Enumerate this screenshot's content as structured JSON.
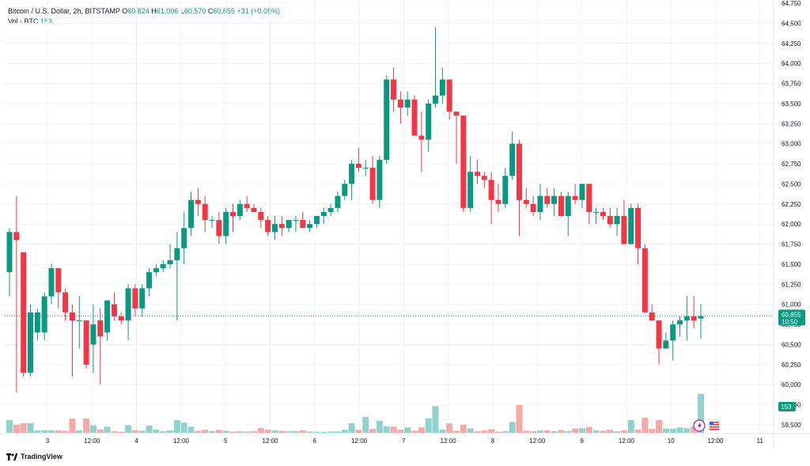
{
  "header": {
    "symbol": "Bitcoin / U.S. Dollar, 2h, BITSTAMP",
    "open_label": "O",
    "open": "60,824",
    "high_label": "H",
    "high": "61,006",
    "low_label": "L",
    "low": "60,570",
    "close_label": "C",
    "close": "60,855",
    "change": "+31 (+0.05%)",
    "volume_label": "Vol · BTC",
    "volume": "153"
  },
  "price_tag": {
    "price": "60,855",
    "countdown": "10:50"
  },
  "volume_tag": "153",
  "brand": "TradingView",
  "colors": {
    "up": "#089981",
    "down": "#f23645",
    "up_vol": "#92d2cc",
    "down_vol": "#f7a9a7",
    "grid": "#f0f3fa",
    "last_line": "#089981"
  },
  "icons": [
    "lightning-icon",
    "us-flag-icon"
  ],
  "chart_data": {
    "type": "candlestick",
    "title": "Bitcoin / U.S. Dollar, 2h, BITSTAMP",
    "ylim": [
      59500,
      64750
    ],
    "yticks": [
      "59,500",
      "59,750",
      "60,000",
      "60,250",
      "60,500",
      "60,750",
      "61,000",
      "61,250",
      "61,500",
      "61,750",
      "62,000",
      "62,250",
      "62,500",
      "62,750",
      "63,000",
      "63,250",
      "63,500",
      "63,750",
      "64,000",
      "64,250",
      "64,500",
      "64,750"
    ],
    "xticks": [
      "3",
      "12:00",
      "4",
      "12:00",
      "5",
      "12:00",
      "6",
      "12:00",
      "7",
      "12:00",
      "8",
      "12:00",
      "9",
      "12:00",
      "10",
      "12:00",
      "11"
    ],
    "volume_max": 200,
    "grid": true,
    "candles": [
      {
        "o": 61400,
        "h": 61950,
        "l": 61100,
        "c": 61900,
        "v": 50
      },
      {
        "o": 61900,
        "h": 62350,
        "l": 59900,
        "c": 61800,
        "v": 32
      },
      {
        "o": 61650,
        "h": 61650,
        "l": 60100,
        "c": 60150,
        "v": 38
      },
      {
        "o": 60150,
        "h": 61000,
        "l": 60100,
        "c": 60900,
        "v": 38
      },
      {
        "o": 60650,
        "h": 60950,
        "l": 60550,
        "c": 60900,
        "v": 9
      },
      {
        "o": 60650,
        "h": 61150,
        "l": 60550,
        "c": 61100,
        "v": 10
      },
      {
        "o": 61100,
        "h": 61500,
        "l": 61000,
        "c": 61450,
        "v": 10
      },
      {
        "o": 61450,
        "h": 61450,
        "l": 60950,
        "c": 61150,
        "v": 9
      },
      {
        "o": 61150,
        "h": 61200,
        "l": 60800,
        "c": 60900,
        "v": 8
      },
      {
        "o": 60900,
        "h": 61000,
        "l": 60100,
        "c": 60800,
        "v": 56
      },
      {
        "o": 60800,
        "h": 61100,
        "l": 60450,
        "c": 60800,
        "v": 9
      },
      {
        "o": 60800,
        "h": 60800,
        "l": 60200,
        "c": 60250,
        "v": 56
      },
      {
        "o": 60500,
        "h": 61000,
        "l": 60150,
        "c": 60750,
        "v": 29
      },
      {
        "o": 60800,
        "h": 60950,
        "l": 60000,
        "c": 60600,
        "v": 13
      },
      {
        "o": 60650,
        "h": 61050,
        "l": 60550,
        "c": 61050,
        "v": 24
      },
      {
        "o": 61000,
        "h": 61150,
        "l": 60800,
        "c": 60850,
        "v": 6
      },
      {
        "o": 60850,
        "h": 60900,
        "l": 60750,
        "c": 60800,
        "v": 4
      },
      {
        "o": 60800,
        "h": 61250,
        "l": 60550,
        "c": 61200,
        "v": 30
      },
      {
        "o": 61200,
        "h": 61250,
        "l": 60850,
        "c": 60950,
        "v": 10
      },
      {
        "o": 60950,
        "h": 61250,
        "l": 60850,
        "c": 61200,
        "v": 8
      },
      {
        "o": 61200,
        "h": 61450,
        "l": 61100,
        "c": 61400,
        "v": 28
      },
      {
        "o": 61400,
        "h": 61500,
        "l": 61350,
        "c": 61450,
        "v": 12
      },
      {
        "o": 61450,
        "h": 61550,
        "l": 61400,
        "c": 61500,
        "v": 6
      },
      {
        "o": 61500,
        "h": 61750,
        "l": 61450,
        "c": 61550,
        "v": 9
      },
      {
        "o": 61550,
        "h": 61900,
        "l": 60800,
        "c": 61700,
        "v": 50
      },
      {
        "o": 61700,
        "h": 62150,
        "l": 61500,
        "c": 61950,
        "v": 40
      },
      {
        "o": 61950,
        "h": 62400,
        "l": 61850,
        "c": 62300,
        "v": 24
      },
      {
        "o": 62300,
        "h": 62450,
        "l": 62100,
        "c": 62250,
        "v": 8
      },
      {
        "o": 62250,
        "h": 62350,
        "l": 61900,
        "c": 62050,
        "v": 12
      },
      {
        "o": 62050,
        "h": 62100,
        "l": 61950,
        "c": 62050,
        "v": 7
      },
      {
        "o": 62050,
        "h": 62150,
        "l": 61750,
        "c": 61850,
        "v": 11
      },
      {
        "o": 61850,
        "h": 62200,
        "l": 61750,
        "c": 62150,
        "v": 8
      },
      {
        "o": 62150,
        "h": 62250,
        "l": 61900,
        "c": 62100,
        "v": 5
      },
      {
        "o": 62100,
        "h": 62300,
        "l": 62050,
        "c": 62250,
        "v": 6
      },
      {
        "o": 62250,
        "h": 62350,
        "l": 62150,
        "c": 62200,
        "v": 5
      },
      {
        "o": 62200,
        "h": 62250,
        "l": 62150,
        "c": 62150,
        "v": 6
      },
      {
        "o": 62150,
        "h": 62200,
        "l": 61950,
        "c": 62050,
        "v": 18
      },
      {
        "o": 62050,
        "h": 62100,
        "l": 61850,
        "c": 61900,
        "v": 12
      },
      {
        "o": 61900,
        "h": 62100,
        "l": 61800,
        "c": 62000,
        "v": 10
      },
      {
        "o": 62000,
        "h": 62100,
        "l": 61850,
        "c": 61950,
        "v": 8
      },
      {
        "o": 61950,
        "h": 62050,
        "l": 61900,
        "c": 62050,
        "v": 6
      },
      {
        "o": 62050,
        "h": 62100,
        "l": 61900,
        "c": 62050,
        "v": 7
      },
      {
        "o": 62050,
        "h": 62150,
        "l": 61950,
        "c": 61950,
        "v": 10
      },
      {
        "o": 61950,
        "h": 62050,
        "l": 61900,
        "c": 62000,
        "v": 5
      },
      {
        "o": 62000,
        "h": 62100,
        "l": 61950,
        "c": 62100,
        "v": 4
      },
      {
        "o": 62100,
        "h": 62200,
        "l": 62000,
        "c": 62150,
        "v": 4
      },
      {
        "o": 62150,
        "h": 62250,
        "l": 62100,
        "c": 62200,
        "v": 5
      },
      {
        "o": 62200,
        "h": 62400,
        "l": 62150,
        "c": 62350,
        "v": 5
      },
      {
        "o": 62350,
        "h": 62550,
        "l": 62300,
        "c": 62500,
        "v": 12
      },
      {
        "o": 62500,
        "h": 62800,
        "l": 62300,
        "c": 62750,
        "v": 38
      },
      {
        "o": 62750,
        "h": 62950,
        "l": 62650,
        "c": 62700,
        "v": 12
      },
      {
        "o": 62700,
        "h": 62800,
        "l": 62600,
        "c": 62700,
        "v": 63
      },
      {
        "o": 62700,
        "h": 62850,
        "l": 62250,
        "c": 62300,
        "v": 15
      },
      {
        "o": 62300,
        "h": 62850,
        "l": 62200,
        "c": 62800,
        "v": 47
      },
      {
        "o": 62800,
        "h": 63850,
        "l": 62750,
        "c": 63800,
        "v": 25
      },
      {
        "o": 63800,
        "h": 63950,
        "l": 63400,
        "c": 63550,
        "v": 24
      },
      {
        "o": 63550,
        "h": 63650,
        "l": 63250,
        "c": 63450,
        "v": 12
      },
      {
        "o": 63450,
        "h": 63650,
        "l": 63350,
        "c": 63550,
        "v": 21
      },
      {
        "o": 63550,
        "h": 63600,
        "l": 63100,
        "c": 63100,
        "v": 8
      },
      {
        "o": 63100,
        "h": 63400,
        "l": 62650,
        "c": 63050,
        "v": 21
      },
      {
        "o": 63050,
        "h": 63550,
        "l": 62900,
        "c": 63500,
        "v": 57
      },
      {
        "o": 63500,
        "h": 64450,
        "l": 63450,
        "c": 63600,
        "v": 105
      },
      {
        "o": 63600,
        "h": 63950,
        "l": 63500,
        "c": 63800,
        "v": 12
      },
      {
        "o": 63800,
        "h": 63800,
        "l": 63300,
        "c": 63400,
        "v": 37
      },
      {
        "o": 63400,
        "h": 63400,
        "l": 62750,
        "c": 63350,
        "v": 8
      },
      {
        "o": 63350,
        "h": 63350,
        "l": 62150,
        "c": 62200,
        "v": 32
      },
      {
        "o": 62200,
        "h": 62850,
        "l": 62150,
        "c": 62650,
        "v": 17
      },
      {
        "o": 62650,
        "h": 62800,
        "l": 62500,
        "c": 62600,
        "v": 6
      },
      {
        "o": 62600,
        "h": 62650,
        "l": 62450,
        "c": 62550,
        "v": 10
      },
      {
        "o": 62550,
        "h": 62650,
        "l": 62000,
        "c": 62300,
        "v": 14
      },
      {
        "o": 62300,
        "h": 62500,
        "l": 62150,
        "c": 62250,
        "v": 4
      },
      {
        "o": 62250,
        "h": 62700,
        "l": 62200,
        "c": 62600,
        "v": 6
      },
      {
        "o": 62600,
        "h": 63150,
        "l": 62550,
        "c": 63000,
        "v": 43
      },
      {
        "o": 63000,
        "h": 63050,
        "l": 61850,
        "c": 62300,
        "v": 110
      },
      {
        "o": 62300,
        "h": 62450,
        "l": 62200,
        "c": 62250,
        "v": 8
      },
      {
        "o": 62250,
        "h": 62350,
        "l": 62100,
        "c": 62150,
        "v": 6
      },
      {
        "o": 62150,
        "h": 62500,
        "l": 62050,
        "c": 62350,
        "v": 9
      },
      {
        "o": 62350,
        "h": 62450,
        "l": 62200,
        "c": 62250,
        "v": 10
      },
      {
        "o": 62250,
        "h": 62450,
        "l": 62100,
        "c": 62350,
        "v": 6
      },
      {
        "o": 62350,
        "h": 62400,
        "l": 62100,
        "c": 62100,
        "v": 11
      },
      {
        "o": 62100,
        "h": 62400,
        "l": 61850,
        "c": 62350,
        "v": 7
      },
      {
        "o": 62350,
        "h": 62500,
        "l": 62250,
        "c": 62300,
        "v": 17
      },
      {
        "o": 62300,
        "h": 62500,
        "l": 62200,
        "c": 62500,
        "v": 18
      },
      {
        "o": 62500,
        "h": 62500,
        "l": 62000,
        "c": 62150,
        "v": 23
      },
      {
        "o": 62150,
        "h": 62200,
        "l": 62000,
        "c": 62150,
        "v": 10
      },
      {
        "o": 62150,
        "h": 62200,
        "l": 62050,
        "c": 62100,
        "v": 8
      },
      {
        "o": 62100,
        "h": 62200,
        "l": 61950,
        "c": 62000,
        "v": 12
      },
      {
        "o": 62000,
        "h": 62200,
        "l": 61850,
        "c": 62100,
        "v": 6
      },
      {
        "o": 62100,
        "h": 62300,
        "l": 61800,
        "c": 61750,
        "v": 10
      },
      {
        "o": 61750,
        "h": 62250,
        "l": 61750,
        "c": 62200,
        "v": 51
      },
      {
        "o": 62200,
        "h": 62250,
        "l": 61500,
        "c": 61700,
        "v": 12
      },
      {
        "o": 61700,
        "h": 61750,
        "l": 60900,
        "c": 60900,
        "v": 60
      },
      {
        "o": 60900,
        "h": 61000,
        "l": 60800,
        "c": 60800,
        "v": 15
      },
      {
        "o": 60800,
        "h": 60800,
        "l": 60250,
        "c": 60450,
        "v": 50
      },
      {
        "o": 60450,
        "h": 60650,
        "l": 60450,
        "c": 60550,
        "v": 17
      },
      {
        "o": 60550,
        "h": 60800,
        "l": 60300,
        "c": 60750,
        "v": 16
      },
      {
        "o": 60750,
        "h": 60850,
        "l": 60600,
        "c": 60800,
        "v": 21
      },
      {
        "o": 60800,
        "h": 61100,
        "l": 60550,
        "c": 60850,
        "v": 18
      },
      {
        "o": 60850,
        "h": 61100,
        "l": 60700,
        "c": 60800,
        "v": 25
      },
      {
        "o": 60824,
        "h": 61006,
        "l": 60570,
        "c": 60855,
        "v": 153
      }
    ]
  }
}
